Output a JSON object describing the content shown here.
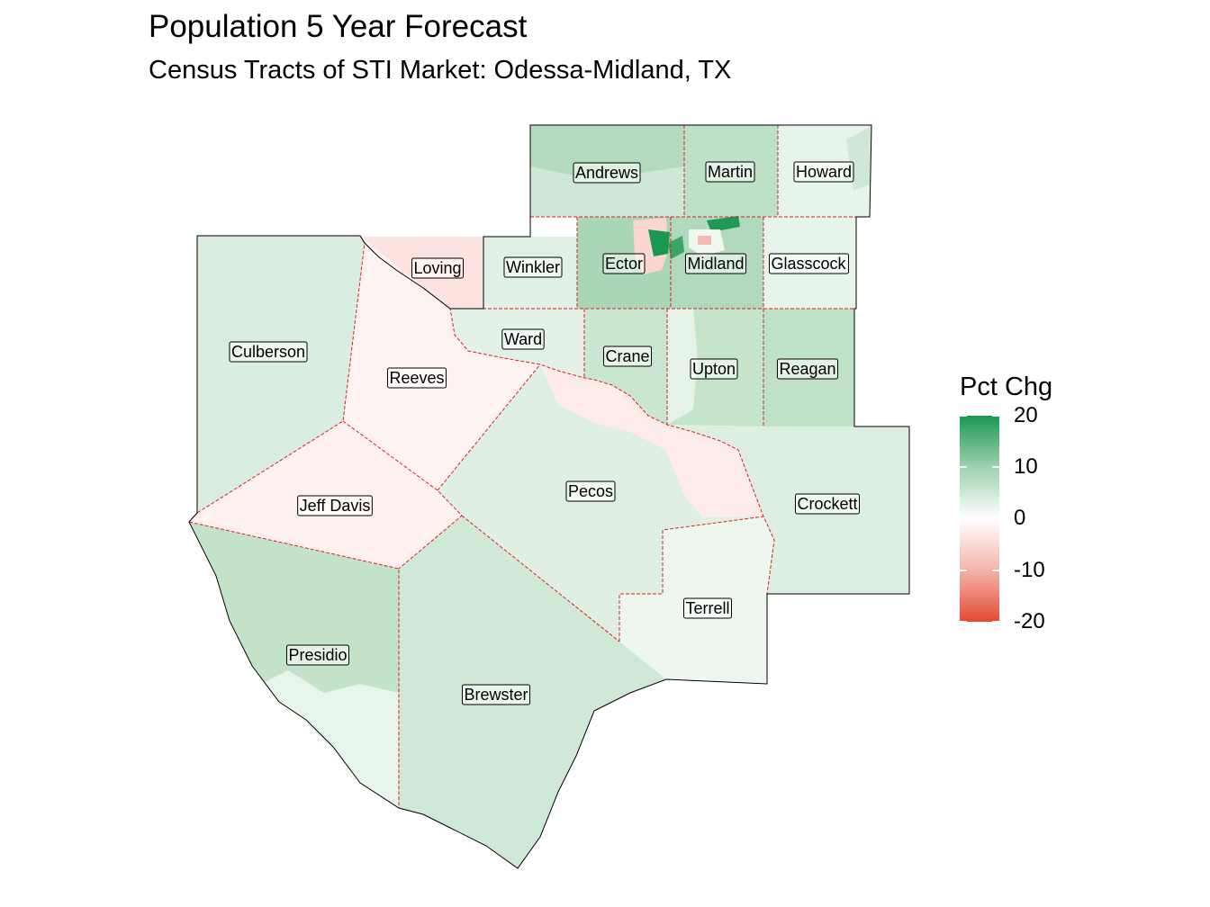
{
  "title": "Population 5 Year Forecast",
  "subtitle": "Census Tracts of STI Market: Odessa-Midland, TX",
  "legend": {
    "title": "Pct Chg",
    "ticks": [
      "20",
      "10",
      "0",
      "-10",
      "-20"
    ],
    "colors": {
      "high": "#1a9850",
      "mid": "#ffffff",
      "low": "#e34a33"
    }
  },
  "counties": [
    {
      "name": "Andrews"
    },
    {
      "name": "Martin"
    },
    {
      "name": "Howard"
    },
    {
      "name": "Loving"
    },
    {
      "name": "Winkler"
    },
    {
      "name": "Ector"
    },
    {
      "name": "Midland"
    },
    {
      "name": "Glasscock"
    },
    {
      "name": "Culberson"
    },
    {
      "name": "Ward"
    },
    {
      "name": "Crane"
    },
    {
      "name": "Upton"
    },
    {
      "name": "Reagan"
    },
    {
      "name": "Reeves"
    },
    {
      "name": "Pecos"
    },
    {
      "name": "Crockett"
    },
    {
      "name": "Jeff Davis"
    },
    {
      "name": "Terrell"
    },
    {
      "name": "Presidio"
    },
    {
      "name": "Brewster"
    }
  ]
}
